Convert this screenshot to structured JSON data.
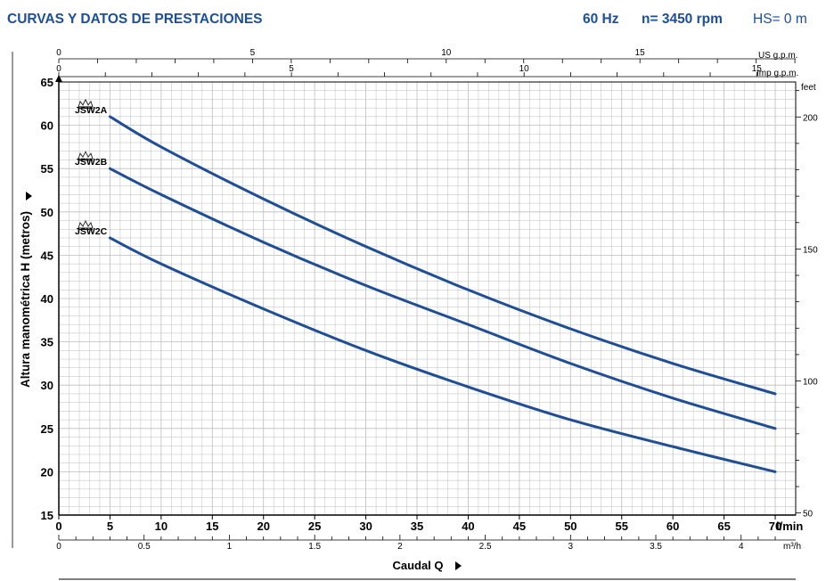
{
  "header": {
    "title": "CURVAS Y DATOS DE PRESTACIONES",
    "freq": "60 Hz",
    "rpm": "n= 3450 rpm",
    "hs": "HS= 0 m"
  },
  "colors": {
    "brand": "#1d4f91",
    "curve": "#1f4e96",
    "grid": "#bdbdbd",
    "axis": "#000000"
  },
  "chart_data": {
    "type": "line",
    "x_unit": "l/min",
    "xlim": [
      0,
      72
    ],
    "ylim": [
      15,
      65
    ],
    "grid": true,
    "ylabel": "Altura manométrica H (metros)",
    "xlabel": "Caudal Q",
    "x_ticks": [
      0,
      5,
      10,
      15,
      20,
      25,
      30,
      35,
      40,
      45,
      50,
      55,
      60,
      65,
      70
    ],
    "y_ticks": [
      15,
      20,
      25,
      30,
      35,
      40,
      45,
      50,
      55,
      60,
      65
    ],
    "series": [
      {
        "name": "JSW2A",
        "x": [
          5,
          10,
          20,
          30,
          40,
          50,
          60,
          70
        ],
        "y": [
          61,
          57.5,
          51.5,
          46,
          41,
          36.5,
          32.5,
          29
        ]
      },
      {
        "name": "JSW2B",
        "x": [
          5,
          10,
          20,
          30,
          40,
          50,
          60,
          70
        ],
        "y": [
          55,
          52,
          46.5,
          41.5,
          37,
          32.5,
          28.5,
          25
        ]
      },
      {
        "name": "JSW2C",
        "x": [
          5,
          10,
          20,
          30,
          40,
          50,
          60,
          70
        ],
        "y": [
          47,
          44,
          38.8,
          34,
          29.8,
          26,
          22.9,
          20
        ]
      }
    ],
    "axes_extra": {
      "us_gpm": {
        "label": "US g.p.m.",
        "ticks": [
          0,
          5,
          10,
          15
        ]
      },
      "imp_gpm": {
        "label": "Imp g.p.m.",
        "ticks": [
          0,
          5,
          10,
          15
        ]
      },
      "m3h": {
        "label": "m³/h",
        "ticks": [
          "0",
          "0.5",
          "1",
          "1.5",
          "2",
          "2.5",
          "3",
          "3.5",
          "4"
        ]
      },
      "feet": {
        "label": "feet",
        "ticks": [
          50,
          100,
          150,
          200
        ]
      }
    }
  }
}
